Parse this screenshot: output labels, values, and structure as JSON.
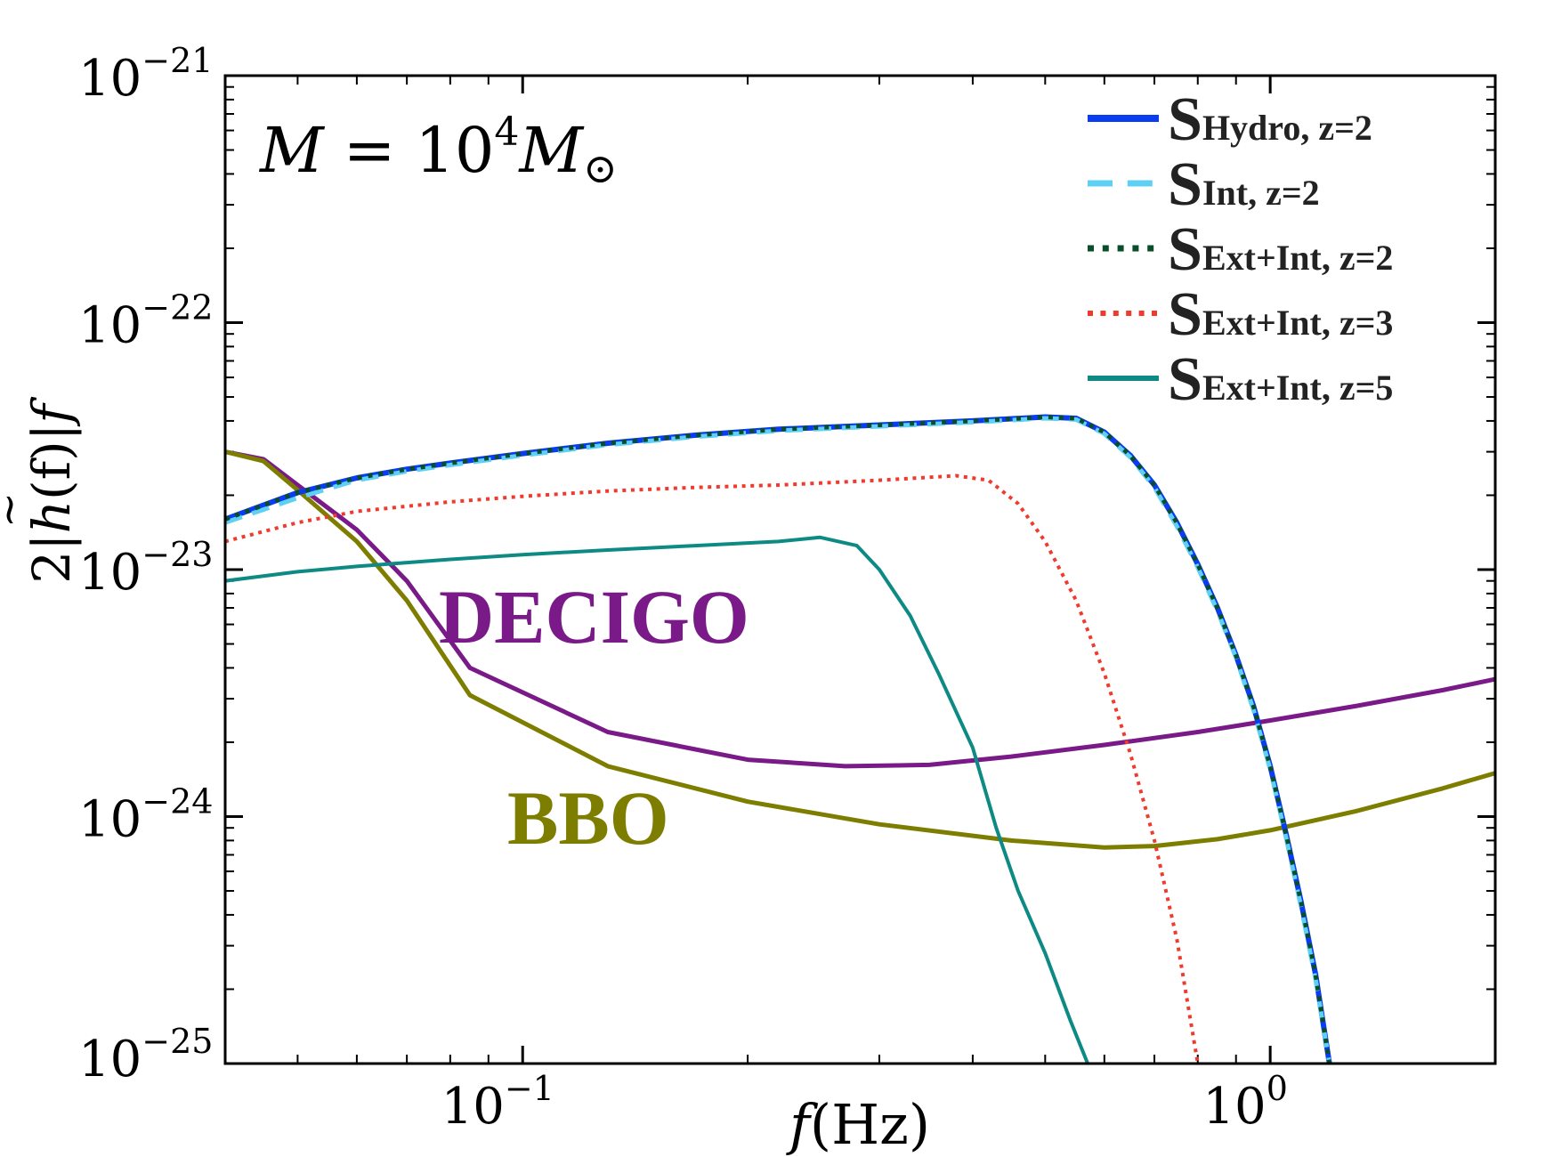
{
  "chart_data": {
    "type": "line",
    "title": "",
    "annotation": {
      "mass_label": {
        "lhs": "M",
        "eq": "=",
        "base": "10",
        "exp": "4",
        "rhs": "M",
        "sun": "⊙"
      },
      "detector_labels": [
        "DECIGO",
        "BBO"
      ]
    },
    "xlabel": {
      "var": "f",
      "unit": "(Hz)"
    },
    "ylabel": {
      "factor": "2|",
      "func": "h",
      "tilde": "~",
      "arg": "(f)|",
      "var": "f"
    },
    "xscale": "log",
    "yscale": "log",
    "xlim": [
      0.04,
      2.0
    ],
    "ylim": [
      1e-25,
      1e-21
    ],
    "x_ticks": [
      {
        "value": 0.1,
        "base": "10",
        "exp": "−1"
      },
      {
        "value": 1.0,
        "base": "10",
        "exp": "0"
      }
    ],
    "y_ticks": [
      {
        "value": 1e-21,
        "base": "10",
        "exp": "−21"
      },
      {
        "value": 1e-22,
        "base": "10",
        "exp": "−22"
      },
      {
        "value": 1e-23,
        "base": "10",
        "exp": "−23"
      },
      {
        "value": 1e-24,
        "base": "10",
        "exp": "−24"
      },
      {
        "value": 1e-25,
        "base": "10",
        "exp": "−25"
      }
    ],
    "legend_position": "top-right",
    "series": [
      {
        "name": "S_Hydro, z=2",
        "S": "S",
        "sub": "Hydro, z=2",
        "color": "#0a3cf0",
        "style": "solid",
        "width": 6,
        "x": [
          0.04,
          0.05,
          0.06,
          0.07,
          0.08,
          0.1,
          0.13,
          0.17,
          0.22,
          0.3,
          0.4,
          0.5,
          0.55,
          0.6,
          0.65,
          0.7,
          0.75,
          0.8,
          0.85,
          0.9,
          0.95,
          1.0,
          1.05,
          1.1,
          1.15,
          1.2
        ],
        "y": [
          1.6e-23,
          2.05e-23,
          2.35e-23,
          2.55e-23,
          2.7e-23,
          2.95e-23,
          3.25e-23,
          3.5e-23,
          3.7e-23,
          3.85e-23,
          4e-23,
          4.15e-23,
          4.1e-23,
          3.6e-23,
          2.9e-23,
          2.2e-23,
          1.55e-23,
          1.05e-23,
          7e-24,
          4.5e-24,
          2.8e-24,
          1.6e-24,
          8.5e-25,
          4.5e-25,
          2.3e-25,
          1e-25
        ]
      },
      {
        "name": "S_Int, z=2",
        "S": "S",
        "sub": "Int, z=2",
        "color": "#5fd0f5",
        "style": "dashed",
        "width": 5,
        "x": [
          0.04,
          0.05,
          0.06,
          0.07,
          0.08,
          0.1,
          0.13,
          0.17,
          0.22,
          0.3,
          0.4,
          0.5,
          0.55,
          0.6,
          0.65,
          0.7,
          0.75,
          0.8,
          0.85,
          0.9,
          0.95,
          1.0,
          1.05,
          1.1,
          1.15,
          1.2
        ],
        "y": [
          1.55e-23,
          1.95e-23,
          2.3e-23,
          2.5e-23,
          2.65e-23,
          2.9e-23,
          3.2e-23,
          3.45e-23,
          3.65e-23,
          3.8e-23,
          3.95e-23,
          4.1e-23,
          4.05e-23,
          3.55e-23,
          2.85e-23,
          2.15e-23,
          1.5e-23,
          1.02e-23,
          6.8e-24,
          4.4e-24,
          2.7e-24,
          1.55e-24,
          8.2e-25,
          4.3e-25,
          2.2e-25,
          1e-25
        ]
      },
      {
        "name": "S_Ext+Int, z=2",
        "S": "S",
        "sub": "Ext+Int, z=2",
        "color": "#0b4d2a",
        "style": "dotted",
        "width": 5,
        "x": [
          0.04,
          0.05,
          0.06,
          0.07,
          0.08,
          0.1,
          0.13,
          0.17,
          0.22,
          0.3,
          0.4,
          0.5,
          0.55,
          0.6,
          0.65,
          0.7,
          0.75,
          0.8,
          0.85,
          0.9,
          0.95,
          1.0,
          1.05,
          1.1,
          1.15,
          1.2
        ],
        "y": [
          1.6e-23,
          2.05e-23,
          2.35e-23,
          2.55e-23,
          2.7e-23,
          2.95e-23,
          3.25e-23,
          3.5e-23,
          3.7e-23,
          3.85e-23,
          4e-23,
          4.15e-23,
          4.1e-23,
          3.6e-23,
          2.9e-23,
          2.2e-23,
          1.55e-23,
          1.05e-23,
          7e-24,
          4.5e-24,
          2.8e-24,
          1.6e-24,
          8.5e-25,
          4.5e-25,
          2.3e-25,
          1e-25
        ]
      },
      {
        "name": "S_Ext+Int, z=3",
        "S": "S",
        "sub": "Ext+Int, z=3",
        "color": "#f03a2e",
        "style": "dotted",
        "width": 4,
        "x": [
          0.04,
          0.05,
          0.06,
          0.08,
          0.1,
          0.13,
          0.17,
          0.22,
          0.3,
          0.38,
          0.42,
          0.46,
          0.5,
          0.55,
          0.6,
          0.65,
          0.7,
          0.75,
          0.8
        ],
        "y": [
          1.3e-23,
          1.55e-23,
          1.72e-23,
          1.88e-23,
          1.98e-23,
          2.08e-23,
          2.15e-23,
          2.2e-23,
          2.3e-23,
          2.4e-23,
          2.3e-23,
          1.85e-23,
          1.3e-23,
          7.5e-24,
          3.8e-24,
          1.8e-24,
          8e-25,
          3.2e-25,
          1e-25
        ]
      },
      {
        "name": "S_Ext+Int, z=5",
        "S": "S",
        "sub": "Ext+Int, z=5",
        "color": "#0e8a84",
        "style": "solid",
        "width": 4,
        "x": [
          0.04,
          0.05,
          0.06,
          0.08,
          0.1,
          0.13,
          0.17,
          0.22,
          0.25,
          0.28,
          0.3,
          0.33,
          0.36,
          0.4,
          0.43,
          0.46,
          0.5,
          0.54,
          0.57
        ],
        "y": [
          9e-24,
          9.8e-24,
          1.03e-23,
          1.1e-23,
          1.15e-23,
          1.2e-23,
          1.25e-23,
          1.3e-23,
          1.35e-23,
          1.25e-23,
          1e-23,
          6.5e-24,
          3.8e-24,
          1.9e-24,
          9e-25,
          5e-25,
          2.8e-25,
          1.5e-25,
          1e-25
        ]
      },
      {
        "name": "DECIGO",
        "color": "#7a1a88",
        "style": "solid",
        "width": 5,
        "legend": false,
        "x": [
          0.04,
          0.045,
          0.05,
          0.06,
          0.07,
          0.085,
          0.13,
          0.2,
          0.27,
          0.35,
          0.45,
          0.6,
          0.8,
          1.0,
          1.3,
          1.7,
          2.0
        ],
        "y": [
          3e-23,
          2.8e-23,
          2.2e-23,
          1.45e-23,
          9e-24,
          4e-24,
          2.2e-24,
          1.7e-24,
          1.6e-24,
          1.62e-24,
          1.75e-24,
          1.95e-24,
          2.2e-24,
          2.45e-24,
          2.8e-24,
          3.25e-24,
          3.6e-24
        ]
      },
      {
        "name": "BBO",
        "color": "#7d7d00",
        "style": "solid",
        "width": 5,
        "legend": false,
        "x": [
          0.04,
          0.045,
          0.05,
          0.06,
          0.07,
          0.085,
          0.13,
          0.2,
          0.3,
          0.45,
          0.6,
          0.7,
          0.85,
          1.0,
          1.3,
          1.7,
          2.0
        ],
        "y": [
          3e-23,
          2.75e-23,
          2.1e-23,
          1.3e-23,
          7.5e-24,
          3.1e-24,
          1.6e-24,
          1.15e-24,
          9.3e-25,
          8e-25,
          7.5e-25,
          7.6e-25,
          8.1e-25,
          8.8e-25,
          1.05e-24,
          1.3e-24,
          1.5e-24
        ]
      }
    ]
  }
}
